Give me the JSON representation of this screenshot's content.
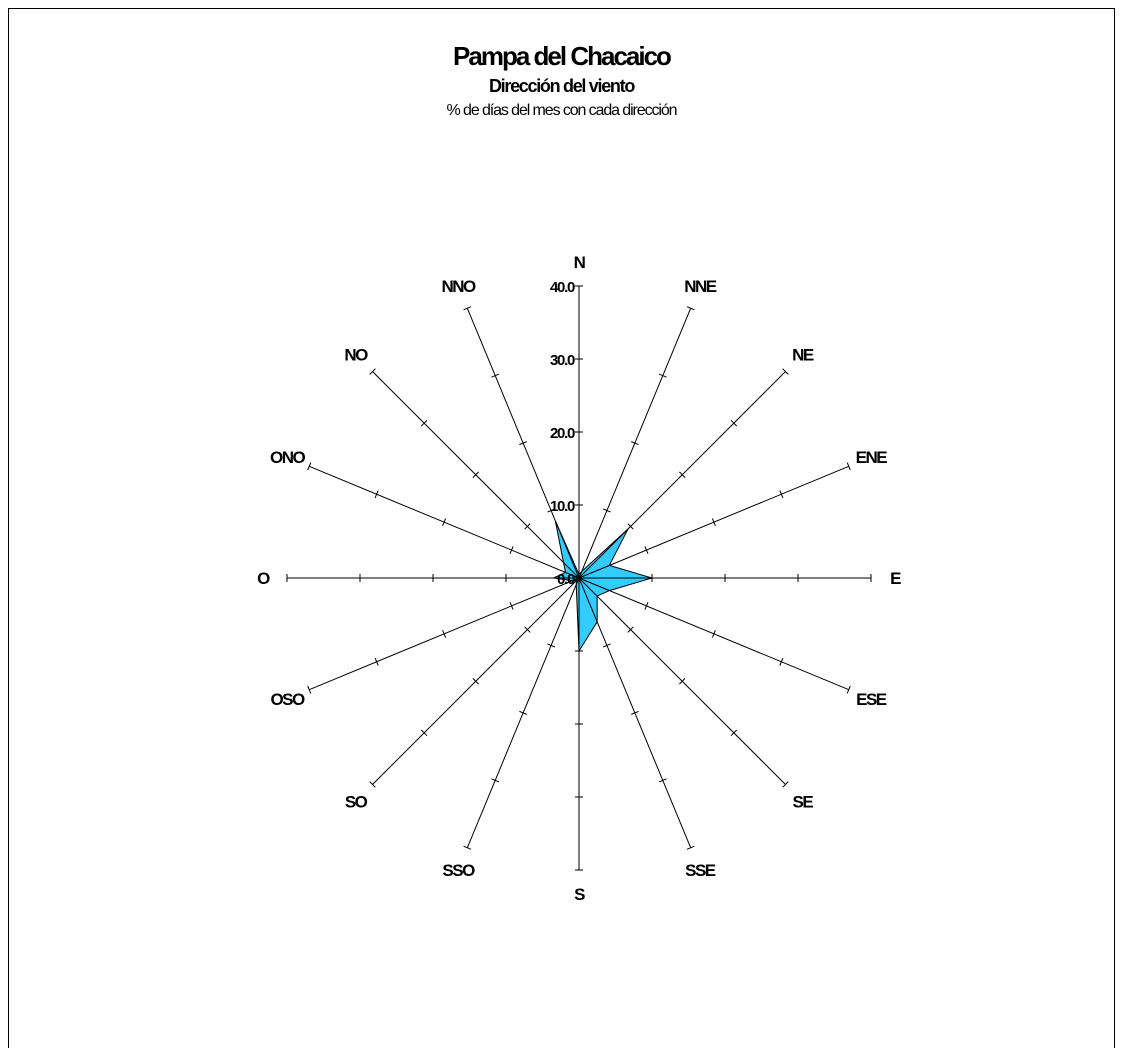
{
  "chart_data": {
    "type": "radar",
    "title": "Pampa del Chacaico",
    "subtitle": "Dirección del viento",
    "caption": "% de días del mes con cada dirección",
    "directions": [
      "N",
      "NNE",
      "NE",
      "ENE",
      "E",
      "ESE",
      "SE",
      "SSE",
      "S",
      "SSO",
      "SO",
      "OSO",
      "O",
      "ONO",
      "NO",
      "NNO"
    ],
    "series": [
      {
        "values": [
          0.5,
          1.0,
          9.5,
          4.5,
          10.0,
          4.5,
          3.5,
          6.5,
          10.0,
          1.0,
          0.5,
          1.0,
          3.5,
          2.0,
          3.0,
          8.5
        ]
      }
    ],
    "r_ticks": [
      "0.0",
      "10.0",
      "20.0",
      "30.0",
      "40.0"
    ],
    "r_range": [
      0,
      40
    ],
    "fill_color": "#33CCFF",
    "stroke_color": "#000000"
  }
}
